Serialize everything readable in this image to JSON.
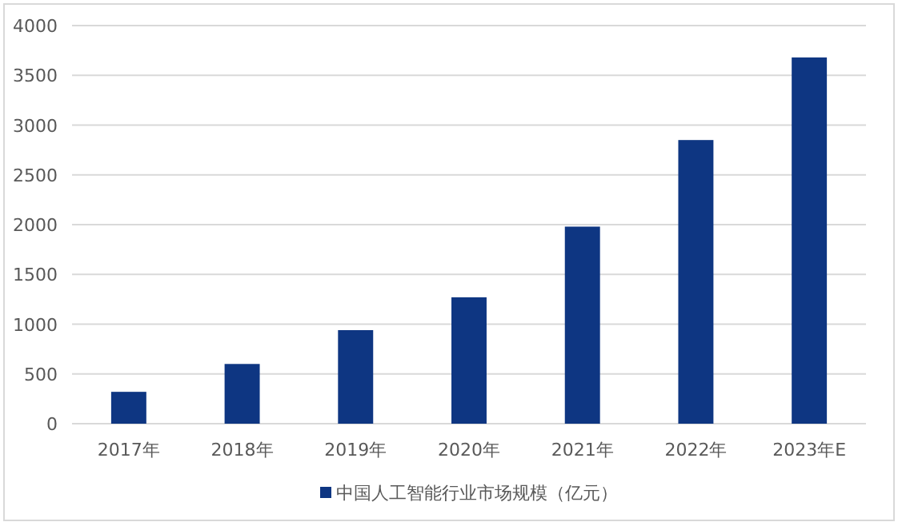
{
  "chart_data": {
    "type": "bar",
    "categories": [
      "2017年",
      "2018年",
      "2019年",
      "2020年",
      "2021年",
      "2022年",
      "2023年E"
    ],
    "series": [
      {
        "name": "中国人工智能行业市场规模（亿元）",
        "color": "#0e3682",
        "values": [
          320,
          600,
          940,
          1270,
          1980,
          2850,
          3680
        ]
      }
    ],
    "ylim": [
      0,
      4000
    ],
    "yticks": [
      0,
      500,
      1000,
      1500,
      2000,
      2500,
      3000,
      3500,
      4000
    ],
    "grid": "y",
    "legend": "bottom"
  }
}
